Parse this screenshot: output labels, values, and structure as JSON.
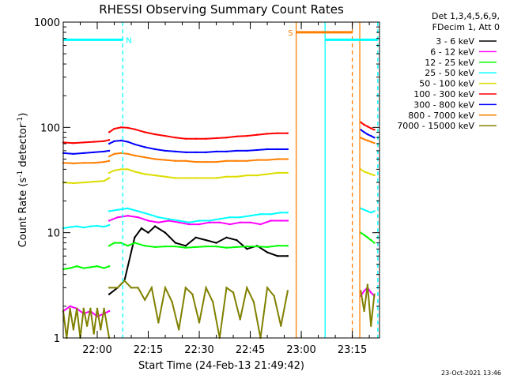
{
  "chart_data": {
    "type": "line",
    "title": "RHESSI Observing Summary Count Rates",
    "xlabel": "Start Time (24-Feb-13 21:49:42)",
    "ylabel": {
      "main": "Count Rate (s",
      "sup1": "-1",
      "mid": " detector",
      "sup2": "-1",
      "end": ")"
    },
    "xrange_min": [
      0,
      93
    ],
    "ylim": [
      1,
      1000
    ],
    "yscale": "log",
    "xtick_labels": [
      {
        "at": 10,
        "label": "22:00"
      },
      {
        "at": 25,
        "label": "22:15"
      },
      {
        "at": 40,
        "label": "22:30"
      },
      {
        "at": 55,
        "label": "22:45"
      },
      {
        "at": 70,
        "label": "23:00"
      },
      {
        "at": 85,
        "label": "23:15"
      }
    ],
    "xminor_step": 5,
    "ytick_labels": [
      {
        "at": 1,
        "label": "1"
      },
      {
        "at": 10,
        "label": "10"
      },
      {
        "at": 100,
        "label": "100"
      },
      {
        "at": 1000,
        "label": "1000"
      }
    ],
    "legend": {
      "header": [
        "Det 1,3,4,5,6,9,",
        "FDecim 1, Att 0"
      ],
      "placement": "right"
    },
    "series": [
      {
        "name": "3 - 6 keV",
        "color": "#000000",
        "segments": [
          {
            "x": [
              13.5,
              16,
              18,
              21,
              23,
              25,
              27,
              30,
              33,
              36,
              39,
              42,
              45,
              48,
              51,
              54,
              57,
              60,
              63,
              66
            ],
            "y": [
              2.6,
              3,
              3.5,
              9,
              11,
              10,
              11.5,
              10,
              8,
              7.5,
              9,
              8.5,
              8,
              9,
              8.5,
              7,
              7.5,
              6.5,
              6,
              6
            ]
          }
        ]
      },
      {
        "name": "6 - 12 keV",
        "color": "#ff00ff",
        "segments": [
          {
            "x": [
              0,
              2,
              4,
              6,
              8,
              10,
              12,
              13.5
            ],
            "y": [
              1.8,
              2,
              1.9,
              1.7,
              1.8,
              1.6,
              1.7,
              1.8
            ]
          },
          {
            "x": [
              13.5,
              16,
              19,
              22,
              25,
              28,
              31,
              34,
              37,
              40,
              43,
              46,
              49,
              52,
              55,
              58,
              61,
              64,
              66
            ],
            "y": [
              13,
              14,
              14.5,
              14,
              13,
              12.5,
              13,
              12.5,
              12,
              12,
              12.5,
              12.5,
              12,
              12.5,
              12.5,
              12,
              13,
              13,
              13
            ]
          },
          {
            "x": [
              87.5,
              88.5,
              89.5,
              90.5,
              91.5
            ],
            "y": [
              2.5,
              2.8,
              3,
              2.7,
              2.5
            ]
          }
        ]
      },
      {
        "name": "12 - 25 keV",
        "color": "#00ff00",
        "segments": [
          {
            "x": [
              0,
              2,
              4,
              6,
              8,
              10,
              12,
              13.5
            ],
            "y": [
              4.5,
              4.6,
              4.8,
              4.6,
              4.7,
              4.8,
              4.6,
              4.8
            ]
          },
          {
            "x": [
              13.5,
              15,
              17,
              19,
              21,
              24,
              27,
              30,
              33,
              36,
              39,
              42,
              45,
              48,
              51,
              54,
              57,
              60,
              63,
              66
            ],
            "y": [
              7.5,
              8,
              8,
              7.5,
              8,
              7.5,
              7.3,
              7.4,
              7.4,
              7.2,
              7.3,
              7.4,
              7.4,
              7.2,
              7.3,
              7.4,
              7.4,
              7.3,
              7.5,
              7.5
            ]
          },
          {
            "x": [
              87.5,
              88.5,
              89.5,
              90.5,
              91.5
            ],
            "y": [
              10,
              9.5,
              9,
              8.5,
              8
            ]
          }
        ]
      },
      {
        "name": "25 - 50 keV",
        "color": "#00ffff",
        "segments": [
          {
            "x": [
              0,
              2,
              4,
              6,
              8,
              10,
              12,
              13.5
            ],
            "y": [
              11,
              11.3,
              11.5,
              11.2,
              11.5,
              11.6,
              11.4,
              11.8
            ]
          },
          {
            "x": [
              13.5,
              16,
              19,
              22,
              25,
              28,
              31,
              34,
              37,
              40,
              43,
              46,
              49,
              52,
              55,
              58,
              61,
              64,
              66
            ],
            "y": [
              16,
              16.5,
              17,
              16,
              15,
              14,
              13.5,
              13,
              12.5,
              13,
              13,
              13.5,
              14,
              14,
              14.5,
              15,
              15,
              15.5,
              15.5
            ]
          },
          {
            "x": [
              87.5,
              88.5,
              89.5,
              90.5,
              91.5
            ],
            "y": [
              17,
              16.5,
              16,
              15.5,
              16
            ]
          }
        ]
      },
      {
        "name": "50 - 100 keV",
        "color": "#dddd00",
        "segments": [
          {
            "x": [
              0,
              3,
              6,
              9,
              12,
              13.5
            ],
            "y": [
              30,
              29.5,
              30,
              30.5,
              31,
              33
            ]
          },
          {
            "x": [
              13.5,
              15,
              17,
              19,
              21,
              24,
              27,
              30,
              33,
              36,
              39,
              42,
              45,
              48,
              51,
              54,
              57,
              60,
              63,
              66
            ],
            "y": [
              37,
              39,
              40,
              40,
              38,
              36,
              35,
              34,
              33,
              33,
              33,
              33,
              33,
              34,
              34,
              35,
              35,
              36,
              37,
              37
            ]
          },
          {
            "x": [
              87.5,
              88.5,
              89.5,
              90.5,
              91.5
            ],
            "y": [
              40,
              38,
              37,
              36,
              35
            ]
          }
        ]
      },
      {
        "name": "100 - 300 keV",
        "color": "#ff0000",
        "segments": [
          {
            "x": [
              0,
              3,
              6,
              9,
              12,
              13.5
            ],
            "y": [
              72,
              71,
              72,
              73,
              74,
              76
            ]
          },
          {
            "x": [
              13.5,
              15,
              17,
              19,
              21,
              24,
              27,
              30,
              33,
              36,
              39,
              42,
              45,
              48,
              51,
              54,
              57,
              60,
              63,
              66
            ],
            "y": [
              90,
              97,
              100,
              99,
              96,
              90,
              86,
              83,
              80,
              78,
              78,
              78,
              79,
              80,
              82,
              83,
              85,
              87,
              88,
              88
            ]
          },
          {
            "x": [
              87.5,
              88.5,
              89.5,
              90.5,
              91.5
            ],
            "y": [
              112,
              106,
              102,
              98,
              95
            ]
          }
        ]
      },
      {
        "name": "300 - 800 keV",
        "color": "#0000ff",
        "segments": [
          {
            "x": [
              0,
              3,
              6,
              9,
              12,
              13.5
            ],
            "y": [
              57,
              56,
              57,
              58,
              59,
              60
            ]
          },
          {
            "x": [
              13.5,
              15,
              17,
              19,
              21,
              24,
              27,
              30,
              33,
              36,
              39,
              42,
              45,
              48,
              51,
              54,
              57,
              60,
              63,
              66
            ],
            "y": [
              70,
              74,
              75,
              73,
              69,
              65,
              62,
              60,
              59,
              58,
              58,
              58,
              59,
              59,
              60,
              60,
              61,
              62,
              62,
              62
            ]
          },
          {
            "x": [
              87.5,
              88.5,
              89.5,
              90.5,
              91.5
            ],
            "y": [
              95,
              90,
              86,
              83,
              80
            ]
          }
        ]
      },
      {
        "name": "800 - 7000 keV",
        "color": "#ff7f00",
        "segments": [
          {
            "x": [
              0,
              3,
              6,
              9,
              12,
              13.5
            ],
            "y": [
              46,
              45.5,
              46,
              46,
              47,
              48
            ]
          },
          {
            "x": [
              13.5,
              15,
              17,
              19,
              21,
              24,
              27,
              30,
              33,
              36,
              39,
              42,
              45,
              48,
              51,
              54,
              57,
              60,
              63,
              66
            ],
            "y": [
              53,
              56,
              57,
              56,
              54,
              52,
              50,
              49,
              48,
              48,
              47,
              47,
              47,
              48,
              48,
              48,
              49,
              49,
              50,
              50
            ]
          },
          {
            "x": [
              87.5,
              88.5,
              89.5,
              90.5,
              91.5
            ],
            "y": [
              80,
              77,
              75,
              73,
              71
            ]
          }
        ]
      },
      {
        "name": "7000 - 15000 keV",
        "color": "#808000",
        "segments": [
          {
            "x": [
              0,
              1,
              2,
              3,
              4,
              5,
              6,
              7,
              8,
              9,
              10,
              11,
              12,
              13.5
            ],
            "y": [
              1.8,
              1,
              1.9,
              1.2,
              1.9,
              1,
              1.9,
              1.3,
              1.9,
              1.1,
              1.9,
              1.2,
              1.9,
              1
            ]
          },
          {
            "x": [
              13.5,
              16,
              18,
              20,
              22,
              24,
              26,
              28,
              30,
              32,
              34,
              36,
              38,
              40,
              42,
              44,
              46,
              48,
              50,
              52,
              54,
              56,
              58,
              60,
              62,
              64,
              66
            ],
            "y": [
              3,
              3,
              3.5,
              3,
              3,
              2.3,
              3,
              1.4,
              3,
              2.2,
              1.2,
              3,
              2.6,
              1.4,
              3,
              2.2,
              1,
              3,
              2.7,
              1.5,
              3,
              2.2,
              1,
              3,
              2.5,
              1.3,
              2.8
            ]
          },
          {
            "x": [
              87.5,
              88.5,
              89.5,
              90.5,
              91.5
            ],
            "y": [
              2.8,
              1.8,
              3.2,
              1.3,
              2.6
            ]
          }
        ]
      }
    ],
    "event_bars": [
      {
        "label": "N",
        "color": "#00ffff",
        "x_start": 0,
        "x_end": 17.5,
        "y": 680
      },
      {
        "label": "S",
        "color": "#ff7f00",
        "x_start": 68.5,
        "x_end": 85,
        "y": 800
      },
      {
        "label": "",
        "color": "#00ffff",
        "x_start": 77,
        "x_end": 92.5,
        "y": 680
      }
    ],
    "event_lines": [
      {
        "x": 17.5,
        "color": "#00ffff",
        "style": "dashed"
      },
      {
        "x": 68.5,
        "color": "#ff7f00",
        "style": "solid"
      },
      {
        "x": 77,
        "color": "#00ffff",
        "style": "solid"
      },
      {
        "x": 85,
        "color": "#ff7f00",
        "style": "dashed"
      },
      {
        "x": 87.2,
        "color": "#ff7f00",
        "style": "solid"
      },
      {
        "x": 92.5,
        "color": "#00ffff",
        "style": "dashed"
      }
    ]
  },
  "footer": {
    "timestamp": "23-Oct-2021 13:46"
  }
}
